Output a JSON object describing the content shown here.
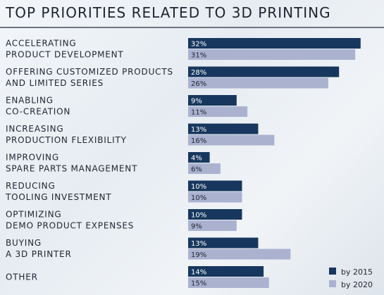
{
  "chart_data": {
    "type": "bar",
    "orientation": "horizontal",
    "title": "TOP PRIORITIES RELATED TO 3D PRINTING",
    "categories": [
      [
        "ACCELERATING",
        "PRODUCT DEVELOPMENT"
      ],
      [
        "OFFERING CUSTOMIZED PRODUCTS",
        "AND LIMITED SERIES"
      ],
      [
        "ENABLING",
        "CO-CREATION"
      ],
      [
        "INCREASING",
        "PRODUCTION FLEXIBILITY"
      ],
      [
        "IMPROVING",
        "SPARE PARTS MANAGEMENT"
      ],
      [
        "REDUCING",
        "TOOLING INVESTMENT"
      ],
      [
        "OPTIMIZING",
        "DEMO PRODUCT EXPENSES"
      ],
      [
        "BUYING",
        "A 3D PRINTER"
      ],
      [
        "OTHER"
      ]
    ],
    "series": [
      {
        "name": "by 2015",
        "color": "#17375e",
        "values": [
          32,
          28,
          9,
          13,
          4,
          10,
          10,
          13,
          14
        ]
      },
      {
        "name": "by 2020",
        "color": "#aab2d0",
        "values": [
          31,
          26,
          11,
          16,
          6,
          10,
          9,
          19,
          15
        ]
      }
    ],
    "value_suffix": "%",
    "legend_position": "bottom-right",
    "grid": false
  }
}
